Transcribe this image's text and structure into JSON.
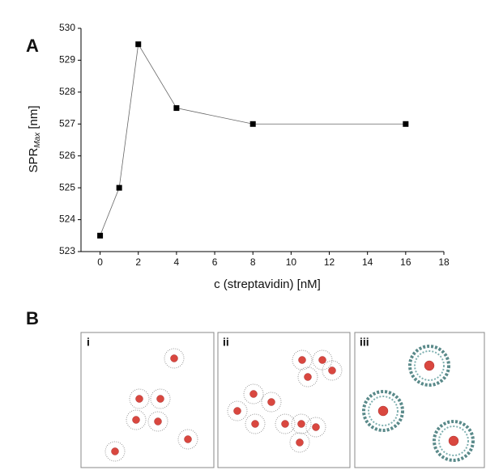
{
  "panel_labels": [
    "A",
    "B"
  ],
  "chart_data": {
    "type": "line",
    "x_label": "c (streptavidin) [nM]",
    "y_label": {
      "main": "SPR",
      "subscript": "Max",
      "suffix": " [nm]"
    },
    "x": [
      0,
      1,
      2,
      4,
      8,
      16
    ],
    "series": [
      {
        "color": "#000000",
        "values": [
          523.5,
          525,
          529.5,
          527.5,
          527,
          527
        ]
      }
    ],
    "xlim": [
      -1,
      18
    ],
    "ylim": [
      523,
      530
    ],
    "xticks": [
      0,
      2,
      4,
      6,
      8,
      10,
      12,
      14,
      16,
      18
    ],
    "yticks": [
      523,
      524,
      525,
      526,
      527,
      528,
      529,
      530
    ]
  },
  "panels": [
    {
      "label": "i"
    },
    {
      "label": "ii"
    },
    {
      "label": "iii"
    }
  ]
}
